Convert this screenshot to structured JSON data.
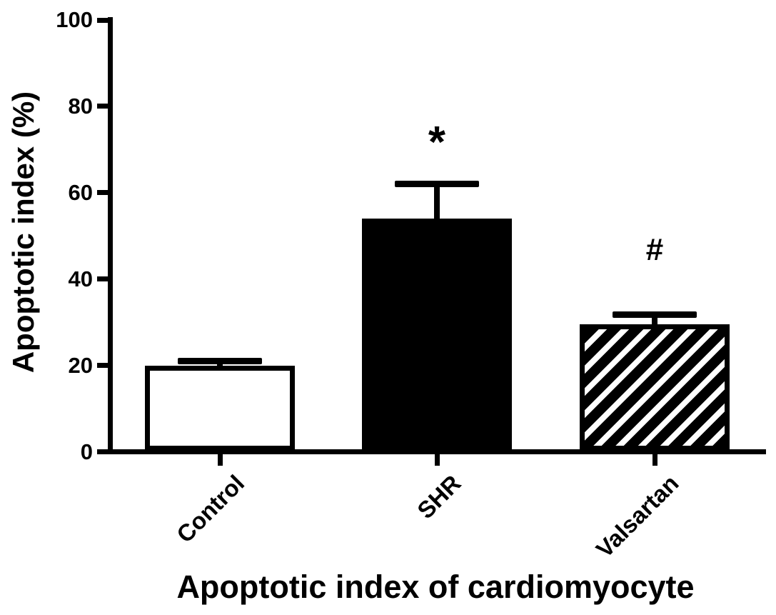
{
  "figure": {
    "background_color": "#ffffff",
    "ink_color": "#000000"
  },
  "chart_data": {
    "type": "bar",
    "title": "Apoptotic index of cardiomyocyte",
    "ylabel": "Apoptotic index (%)",
    "xlabel": "",
    "ylim": [
      0,
      100
    ],
    "yticks": [
      0,
      20,
      40,
      60,
      80,
      100
    ],
    "categories": [
      "Control",
      "SHR",
      "Valsartan"
    ],
    "values": [
      20,
      54,
      29.5
    ],
    "errors": [
      1,
      8,
      2.2
    ],
    "error_style": "upper SEM caps only",
    "annotations": [
      "",
      "*",
      "#"
    ],
    "bar_styles": [
      "white",
      "solid-black",
      "diagonal-hatch"
    ],
    "grid": false,
    "legend": false
  }
}
